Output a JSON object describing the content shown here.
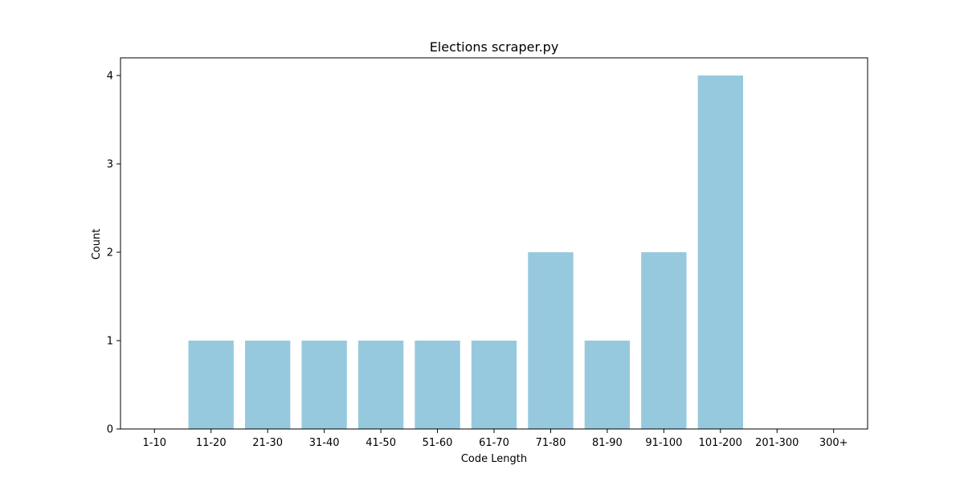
{
  "chart_data": {
    "type": "bar",
    "title": "Elections scraper.py",
    "xlabel": "Code Length",
    "ylabel": "Count",
    "categories": [
      "1-10",
      "11-20",
      "21-30",
      "31-40",
      "41-50",
      "51-60",
      "61-70",
      "71-80",
      "81-90",
      "91-100",
      "101-200",
      "201-300",
      "300+"
    ],
    "values": [
      0,
      1,
      1,
      1,
      1,
      1,
      1,
      2,
      1,
      2,
      4,
      0,
      0
    ],
    "ylim": [
      0,
      4.2
    ],
    "yticks": [
      0,
      1,
      2,
      3,
      4
    ],
    "bar_color": "#96c9dd",
    "grid": false,
    "legend": "none"
  }
}
